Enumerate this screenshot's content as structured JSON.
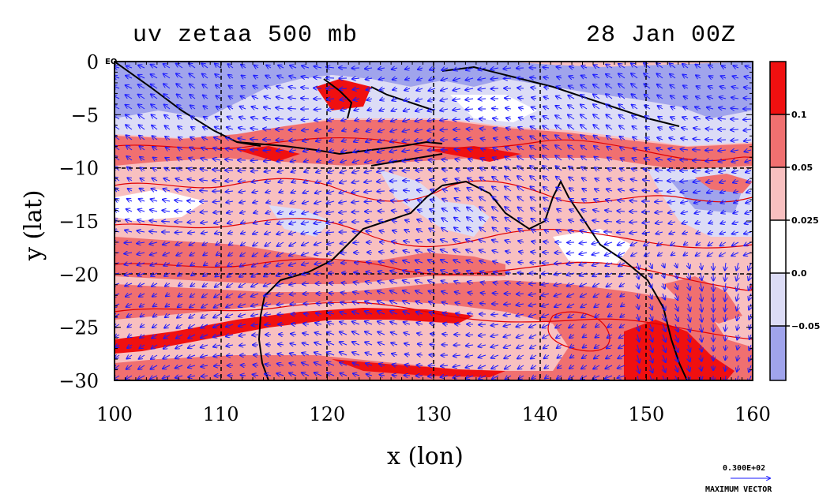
{
  "title_left": "uv zetaa 500 mb",
  "title_right": "28 Jan 00Z",
  "x_axis": {
    "label": "x (lon)",
    "ticks": [
      "100",
      "110",
      "120",
      "130",
      "140",
      "150",
      "160"
    ],
    "range": [
      100,
      160
    ]
  },
  "y_axis": {
    "label": "y (lat)",
    "ticks": [
      "0",
      "−5",
      "−10",
      "−15",
      "−20",
      "−25",
      "−30"
    ],
    "range": [
      -30,
      0
    ]
  },
  "eq_label": "EQ",
  "colorbar": {
    "labels": [
      "0.1",
      "0.05",
      "0.025",
      "0.0",
      "−0.05"
    ],
    "colors": [
      "#f01010",
      "#f07070",
      "#f8c0c0",
      "#ffffff",
      "#dcdcf6",
      "#a0a4ec"
    ]
  },
  "max_vector": {
    "value": "0.300E+02",
    "label": "MAXIMUM VECTOR"
  },
  "grid": "dashed every 10 degrees"
}
